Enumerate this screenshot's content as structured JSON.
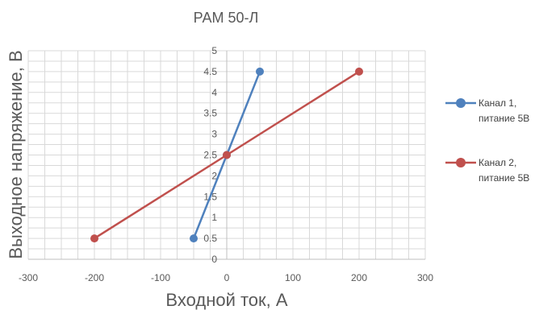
{
  "chart_data": {
    "type": "scatter",
    "title": "РАМ 50-Л",
    "xlabel": "Входной ток, А",
    "ylabel": "Выходное напряжение, В",
    "xlim": [
      -300,
      300
    ],
    "ylim": [
      0,
      5
    ],
    "x_ticks": [
      "-300",
      "-200",
      "-100",
      "0",
      "100",
      "200",
      "300"
    ],
    "y_ticks": [
      "0",
      "0.5",
      "1",
      "1.5",
      "2",
      "2.5",
      "3",
      "3.5",
      "4",
      "4.5",
      "5"
    ],
    "grid": true,
    "legend_position": "right",
    "series": [
      {
        "name": "Канал 1,\nпитание 5В",
        "legend_lines": [
          "Канал 1,",
          "питание 5В"
        ],
        "color": "#4f81bd",
        "points": [
          {
            "x": -50,
            "y": 0.5
          },
          {
            "x": 0,
            "y": 2.5
          },
          {
            "x": 50,
            "y": 4.5
          }
        ]
      },
      {
        "name": "Канал 2,\nпитание 5В",
        "legend_lines": [
          "Канал 2,",
          "питание 5В"
        ],
        "color": "#c0504d",
        "points": [
          {
            "x": -200,
            "y": 0.5
          },
          {
            "x": 0,
            "y": 2.5
          },
          {
            "x": 200,
            "y": 4.5
          }
        ]
      }
    ]
  }
}
